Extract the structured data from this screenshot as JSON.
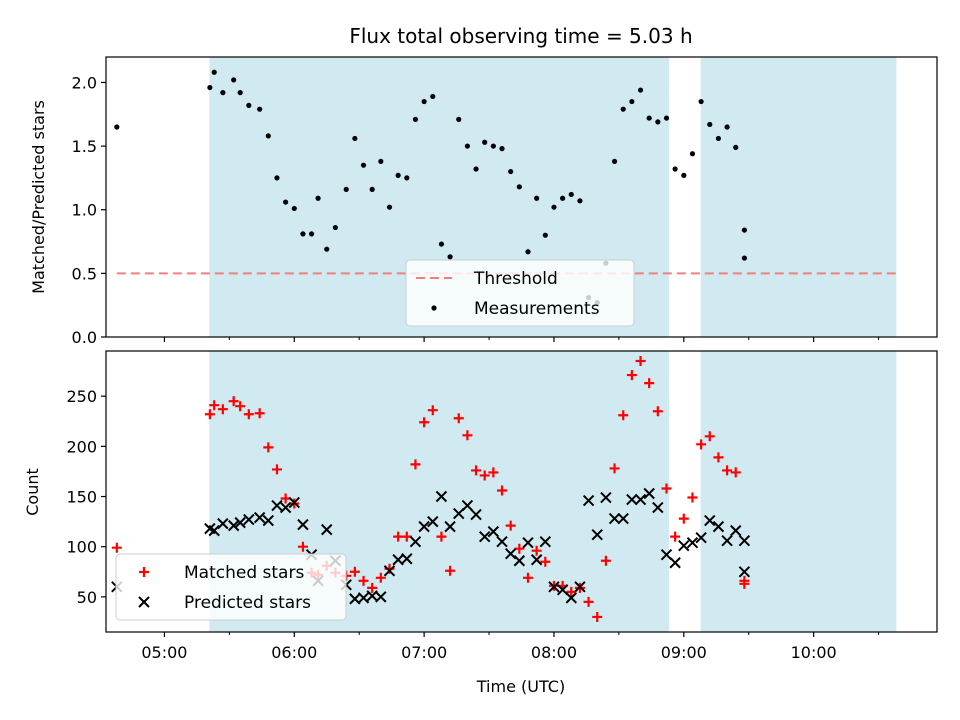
{
  "chart_data": [
    {
      "type": "scatter",
      "title": "Flux total observing time = 5.03 h",
      "xlabel": "",
      "ylabel": "Matched/Predicted stars",
      "ylim": [
        0,
        2.2
      ],
      "yticks": [
        "0.0",
        "0.5",
        "1.0",
        "1.5",
        "2.0"
      ],
      "xlim": [
        "04:33",
        "10:57"
      ],
      "shaded_intervals": [
        [
          "05:21",
          "08:53"
        ],
        [
          "09:08",
          "10:38"
        ]
      ],
      "shade_color": "#add8e6",
      "threshold": {
        "name": "Threshold",
        "y": 0.5,
        "x_start": "04:38",
        "x_end": "10:38",
        "color": "#f08080"
      },
      "legend": {
        "entries": [
          "Threshold",
          "Measurements"
        ],
        "location": "bottom-center"
      },
      "series": [
        {
          "name": "Measurements",
          "color": "#000000",
          "points": [
            [
              "04:38",
              1.65
            ],
            [
              "05:21",
              1.96
            ],
            [
              "05:23",
              2.08
            ],
            [
              "05:27",
              1.92
            ],
            [
              "05:32",
              2.02
            ],
            [
              "05:35",
              1.92
            ],
            [
              "05:39",
              1.82
            ],
            [
              "05:44",
              1.79
            ],
            [
              "05:48",
              1.58
            ],
            [
              "05:52",
              1.25
            ],
            [
              "05:56",
              1.06
            ],
            [
              "06:00",
              1.01
            ],
            [
              "06:04",
              0.81
            ],
            [
              "06:08",
              0.81
            ],
            [
              "06:11",
              1.09
            ],
            [
              "06:15",
              0.69
            ],
            [
              "06:19",
              0.86
            ],
            [
              "06:24",
              1.16
            ],
            [
              "06:28",
              1.56
            ],
            [
              "06:32",
              1.35
            ],
            [
              "06:36",
              1.16
            ],
            [
              "06:40",
              1.38
            ],
            [
              "06:44",
              1.02
            ],
            [
              "06:48",
              1.27
            ],
            [
              "06:52",
              1.25
            ],
            [
              "06:56",
              1.71
            ],
            [
              "07:00",
              1.85
            ],
            [
              "07:04",
              1.89
            ],
            [
              "07:08",
              0.73
            ],
            [
              "07:12",
              0.63
            ],
            [
              "07:16",
              1.71
            ],
            [
              "07:20",
              1.5
            ],
            [
              "07:24",
              1.32
            ],
            [
              "07:28",
              1.53
            ],
            [
              "07:32",
              1.5
            ],
            [
              "07:36",
              1.48
            ],
            [
              "07:40",
              1.3
            ],
            [
              "07:44",
              1.18
            ],
            [
              "07:48",
              0.67
            ],
            [
              "07:52",
              1.09
            ],
            [
              "07:56",
              0.8
            ],
            [
              "08:00",
              1.02
            ],
            [
              "08:04",
              1.09
            ],
            [
              "08:08",
              1.12
            ],
            [
              "08:12",
              1.07
            ],
            [
              "08:16",
              0.31
            ],
            [
              "08:20",
              0.27
            ],
            [
              "08:24",
              0.58
            ],
            [
              "08:28",
              1.38
            ],
            [
              "08:32",
              1.79
            ],
            [
              "08:36",
              1.85
            ],
            [
              "08:40",
              1.94
            ],
            [
              "08:44",
              1.72
            ],
            [
              "08:48",
              1.69
            ],
            [
              "08:52",
              1.72
            ],
            [
              "08:56",
              1.32
            ],
            [
              "09:00",
              1.27
            ],
            [
              "09:04",
              1.44
            ],
            [
              "09:08",
              1.85
            ],
            [
              "09:12",
              1.67
            ],
            [
              "09:16",
              1.56
            ],
            [
              "09:20",
              1.65
            ],
            [
              "09:24",
              1.49
            ],
            [
              "09:28",
              0.84
            ],
            [
              "09:28",
              0.62
            ]
          ]
        }
      ]
    },
    {
      "type": "scatter",
      "title": "",
      "xlabel": "Time (UTC)",
      "ylabel": "Count",
      "ylim": [
        15,
        295
      ],
      "yticks": [
        "50",
        "100",
        "150",
        "200",
        "250"
      ],
      "xticks": [
        "05:00",
        "06:00",
        "07:00",
        "08:00",
        "09:00",
        "10:00"
      ],
      "xlim": [
        "04:33",
        "10:57"
      ],
      "shaded_intervals": [
        [
          "05:21",
          "08:53"
        ],
        [
          "09:08",
          "10:38"
        ]
      ],
      "shade_color": "#add8e6",
      "legend": {
        "entries": [
          "Matched stars",
          "Predicted stars"
        ],
        "location": "bottom-left"
      },
      "series": [
        {
          "name": "Matched stars",
          "marker": "plus",
          "color": "#ff0000",
          "points": [
            [
              "04:38",
              99
            ],
            [
              "05:21",
              232
            ],
            [
              "05:23",
              241
            ],
            [
              "05:27",
              237
            ],
            [
              "05:32",
              245
            ],
            [
              "05:35",
              240
            ],
            [
              "05:39",
              232
            ],
            [
              "05:44",
              233
            ],
            [
              "05:48",
              199
            ],
            [
              "05:52",
              177
            ],
            [
              "05:56",
              148
            ],
            [
              "06:00",
              143
            ],
            [
              "06:04",
              100
            ],
            [
              "06:08",
              74
            ],
            [
              "06:11",
              72
            ],
            [
              "06:15",
              81
            ],
            [
              "06:19",
              74
            ],
            [
              "06:24",
              71
            ],
            [
              "06:28",
              75
            ],
            [
              "06:32",
              66
            ],
            [
              "06:36",
              59
            ],
            [
              "06:40",
              69
            ],
            [
              "06:44",
              78
            ],
            [
              "06:48",
              110
            ],
            [
              "06:52",
              110
            ],
            [
              "06:56",
              182
            ],
            [
              "07:00",
              224
            ],
            [
              "07:04",
              236
            ],
            [
              "07:08",
              110
            ],
            [
              "07:12",
              76
            ],
            [
              "07:16",
              228
            ],
            [
              "07:20",
              211
            ],
            [
              "07:24",
              176
            ],
            [
              "07:28",
              171
            ],
            [
              "07:32",
              174
            ],
            [
              "07:36",
              156
            ],
            [
              "07:40",
              121
            ],
            [
              "07:44",
              98
            ],
            [
              "07:48",
              69
            ],
            [
              "07:52",
              96
            ],
            [
              "07:56",
              85
            ],
            [
              "08:00",
              61
            ],
            [
              "08:04",
              61
            ],
            [
              "08:08",
              55
            ],
            [
              "08:12",
              59
            ],
            [
              "08:16",
              45
            ],
            [
              "08:20",
              30
            ],
            [
              "08:24",
              86
            ],
            [
              "08:28",
              178
            ],
            [
              "08:32",
              231
            ],
            [
              "08:36",
              271
            ],
            [
              "08:40",
              285
            ],
            [
              "08:44",
              263
            ],
            [
              "08:48",
              235
            ],
            [
              "08:52",
              158
            ],
            [
              "08:56",
              110
            ],
            [
              "09:00",
              128
            ],
            [
              "09:04",
              149
            ],
            [
              "09:08",
              202
            ],
            [
              "09:12",
              210
            ],
            [
              "09:16",
              189
            ],
            [
              "09:20",
              176
            ],
            [
              "09:24",
              174
            ],
            [
              "09:28",
              66
            ],
            [
              "09:28",
              63
            ]
          ]
        },
        {
          "name": "Predicted stars",
          "marker": "x",
          "color": "#000000",
          "points": [
            [
              "04:38",
              60
            ],
            [
              "05:21",
              118
            ],
            [
              "05:23",
              116
            ],
            [
              "05:27",
              123
            ],
            [
              "05:32",
              121
            ],
            [
              "05:35",
              124
            ],
            [
              "05:39",
              127
            ],
            [
              "05:44",
              129
            ],
            [
              "05:48",
              126
            ],
            [
              "05:52",
              141
            ],
            [
              "05:56",
              139
            ],
            [
              "06:00",
              144
            ],
            [
              "06:04",
              122
            ],
            [
              "06:08",
              92
            ],
            [
              "06:11",
              66
            ],
            [
              "06:15",
              117
            ],
            [
              "06:19",
              86
            ],
            [
              "06:24",
              62
            ],
            [
              "06:28",
              48
            ],
            [
              "06:32",
              49
            ],
            [
              "06:36",
              51
            ],
            [
              "06:40",
              50
            ],
            [
              "06:44",
              76
            ],
            [
              "06:48",
              87
            ],
            [
              "06:52",
              88
            ],
            [
              "06:56",
              105
            ],
            [
              "07:00",
              120
            ],
            [
              "07:04",
              125
            ],
            [
              "07:08",
              150
            ],
            [
              "07:12",
              120
            ],
            [
              "07:16",
              133
            ],
            [
              "07:20",
              141
            ],
            [
              "07:24",
              132
            ],
            [
              "07:28",
              110
            ],
            [
              "07:32",
              115
            ],
            [
              "07:36",
              105
            ],
            [
              "07:40",
              93
            ],
            [
              "07:44",
              86
            ],
            [
              "07:48",
              104
            ],
            [
              "07:52",
              87
            ],
            [
              "07:56",
              105
            ],
            [
              "08:00",
              60
            ],
            [
              "08:04",
              57
            ],
            [
              "08:08",
              49
            ],
            [
              "08:12",
              60
            ],
            [
              "08:16",
              146
            ],
            [
              "08:20",
              112
            ],
            [
              "08:24",
              149
            ],
            [
              "08:28",
              128
            ],
            [
              "08:32",
              128
            ],
            [
              "08:36",
              147
            ],
            [
              "08:40",
              147
            ],
            [
              "08:44",
              153
            ],
            [
              "08:48",
              139
            ],
            [
              "08:52",
              92
            ],
            [
              "08:56",
              84
            ],
            [
              "09:00",
              101
            ],
            [
              "09:04",
              104
            ],
            [
              "09:08",
              109
            ],
            [
              "09:12",
              126
            ],
            [
              "09:16",
              120
            ],
            [
              "09:20",
              106
            ],
            [
              "09:24",
              116
            ],
            [
              "09:28",
              106
            ],
            [
              "09:28",
              75
            ]
          ]
        }
      ]
    }
  ]
}
